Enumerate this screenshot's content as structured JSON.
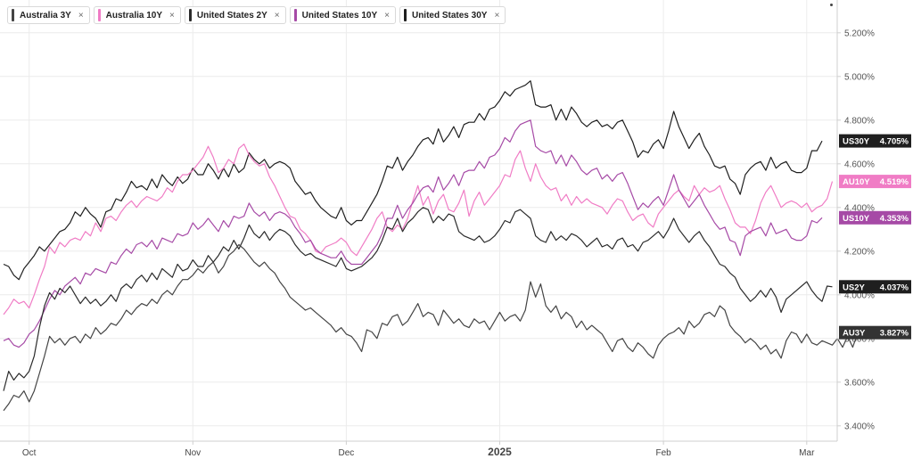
{
  "legend": [
    {
      "label": "Australia 3Y",
      "color": "#444444"
    },
    {
      "label": "Australia 10Y",
      "color": "#f07cc5"
    },
    {
      "label": "United States 2Y",
      "color": "#2b2b2b"
    },
    {
      "label": "United States 10Y",
      "color": "#a64aa6"
    },
    {
      "label": "United States 30Y",
      "color": "#1f1f1f"
    }
  ],
  "close_symbol": "×",
  "chart_data": {
    "type": "line",
    "xlabel": "",
    "ylabel": "",
    "x_ticks": [
      {
        "label": "Oct",
        "index": 5
      },
      {
        "label": "Nov",
        "index": 37
      },
      {
        "label": "Dec",
        "index": 67
      },
      {
        "label": "2025",
        "index": 97
      },
      {
        "label": "Feb",
        "index": 129
      },
      {
        "label": "Mar",
        "index": 157
      }
    ],
    "y_ticks": [
      "5.200%",
      "5.000%",
      "4.800%",
      "4.600%",
      "4.400%",
      "4.200%",
      "4.000%",
      "3.800%",
      "3.600%",
      "3.400%"
    ],
    "y_tick_values": [
      5.2,
      5.0,
      4.8,
      4.6,
      4.4,
      4.2,
      4.0,
      3.8,
      3.6,
      3.4
    ],
    "ylim": [
      3.33,
      5.35
    ],
    "grid": true,
    "series": [
      {
        "name": "US30Y",
        "tag": "US30Y",
        "last": "4.705%",
        "color": "#1f1f1f",
        "tag_color": "#1f1f1f",
        "values": [
          4.14,
          4.13,
          4.09,
          4.07,
          4.12,
          4.15,
          4.18,
          4.22,
          4.2,
          4.23,
          4.26,
          4.29,
          4.3,
          4.33,
          4.38,
          4.36,
          4.4,
          4.37,
          4.35,
          4.31,
          4.38,
          4.39,
          4.44,
          4.43,
          4.47,
          4.52,
          4.49,
          4.5,
          4.48,
          4.53,
          4.49,
          4.55,
          4.52,
          4.5,
          4.54,
          4.51,
          4.53,
          4.58,
          4.55,
          4.55,
          4.6,
          4.57,
          4.53,
          4.58,
          4.54,
          4.6,
          4.56,
          4.58,
          4.65,
          4.62,
          4.6,
          4.62,
          4.58,
          4.6,
          4.61,
          4.6,
          4.58,
          4.52,
          4.49,
          4.46,
          4.47,
          4.43,
          4.4,
          4.38,
          4.36,
          4.35,
          4.4,
          4.34,
          4.32,
          4.34,
          4.34,
          4.38,
          4.42,
          4.46,
          4.52,
          4.59,
          4.58,
          4.63,
          4.57,
          4.61,
          4.64,
          4.68,
          4.71,
          4.72,
          4.69,
          4.76,
          4.7,
          4.73,
          4.77,
          4.72,
          4.78,
          4.79,
          4.79,
          4.83,
          4.8,
          4.85,
          4.86,
          4.89,
          4.93,
          4.91,
          4.94,
          4.95,
          4.96,
          4.98,
          4.87,
          4.86,
          4.86,
          4.87,
          4.8,
          4.85,
          4.8,
          4.86,
          4.83,
          4.79,
          4.77,
          4.79,
          4.8,
          4.77,
          4.78,
          4.76,
          4.79,
          4.8,
          4.75,
          4.7,
          4.63,
          4.66,
          4.65,
          4.69,
          4.71,
          4.67,
          4.75,
          4.84,
          4.77,
          4.72,
          4.67,
          4.71,
          4.74,
          4.68,
          4.64,
          4.59,
          4.58,
          4.59,
          4.53,
          4.51,
          4.46,
          4.55,
          4.58,
          4.6,
          4.61,
          4.57,
          4.63,
          4.58,
          4.6,
          4.61,
          4.57,
          4.56,
          4.56,
          4.58,
          4.66,
          4.66,
          4.705
        ]
      },
      {
        "name": "AU10Y",
        "tag": "AU10Y",
        "last": "4.519%",
        "color": "#f07cc5",
        "tag_color": "#f07cc5",
        "values": [
          3.91,
          3.94,
          3.98,
          3.96,
          3.97,
          3.94,
          4.0,
          4.07,
          4.13,
          4.22,
          4.19,
          4.24,
          4.22,
          4.25,
          4.26,
          4.25,
          4.29,
          4.27,
          4.33,
          4.29,
          4.35,
          4.36,
          4.34,
          4.38,
          4.41,
          4.43,
          4.4,
          4.43,
          4.45,
          4.44,
          4.43,
          4.45,
          4.49,
          4.47,
          4.52,
          4.55,
          4.55,
          4.57,
          4.6,
          4.63,
          4.68,
          4.63,
          4.56,
          4.58,
          4.62,
          4.6,
          4.67,
          4.69,
          4.64,
          4.61,
          4.59,
          4.6,
          4.54,
          4.5,
          4.45,
          4.4,
          4.36,
          4.35,
          4.3,
          4.28,
          4.25,
          4.2,
          4.19,
          4.22,
          4.23,
          4.24,
          4.26,
          4.24,
          4.2,
          4.18,
          4.22,
          4.26,
          4.3,
          4.35,
          4.38,
          4.31,
          4.29,
          4.32,
          4.3,
          4.35,
          4.43,
          4.5,
          4.41,
          4.45,
          4.37,
          4.43,
          4.46,
          4.39,
          4.38,
          4.42,
          4.48,
          4.36,
          4.43,
          4.47,
          4.41,
          4.44,
          4.47,
          4.5,
          4.55,
          4.54,
          4.62,
          4.66,
          4.58,
          4.52,
          4.6,
          4.54,
          4.5,
          4.48,
          4.49,
          4.43,
          4.46,
          4.41,
          4.45,
          4.42,
          4.44,
          4.42,
          4.41,
          4.4,
          4.37,
          4.41,
          4.44,
          4.43,
          4.38,
          4.34,
          4.36,
          4.37,
          4.33,
          4.31,
          4.37,
          4.4,
          4.43,
          4.46,
          4.48,
          4.45,
          4.43,
          4.5,
          4.46,
          4.49,
          4.47,
          4.48,
          4.5,
          4.44,
          4.39,
          4.33,
          4.31,
          4.31,
          4.28,
          4.34,
          4.42,
          4.47,
          4.5,
          4.45,
          4.4,
          4.42,
          4.43,
          4.42,
          4.4,
          4.42,
          4.38,
          4.4,
          4.41,
          4.44,
          4.519
        ]
      },
      {
        "name": "US10Y",
        "tag": "US10Y",
        "last": "4.353%",
        "color": "#a64aa6",
        "tag_color": "#a64aa6",
        "values": [
          3.79,
          3.8,
          3.77,
          3.76,
          3.78,
          3.82,
          3.84,
          3.88,
          3.93,
          3.98,
          4.02,
          4.0,
          4.04,
          4.06,
          4.08,
          4.05,
          4.1,
          4.09,
          4.12,
          4.11,
          4.1,
          4.15,
          4.14,
          4.18,
          4.21,
          4.19,
          4.23,
          4.24,
          4.22,
          4.25,
          4.21,
          4.26,
          4.25,
          4.24,
          4.28,
          4.27,
          4.28,
          4.33,
          4.3,
          4.32,
          4.35,
          4.32,
          4.29,
          4.34,
          4.31,
          4.36,
          4.35,
          4.36,
          4.42,
          4.38,
          4.36,
          4.38,
          4.34,
          4.37,
          4.38,
          4.37,
          4.35,
          4.31,
          4.28,
          4.24,
          4.25,
          4.21,
          4.19,
          4.18,
          4.17,
          4.17,
          4.2,
          4.16,
          4.14,
          4.14,
          4.14,
          4.17,
          4.2,
          4.23,
          4.28,
          4.35,
          4.35,
          4.41,
          4.35,
          4.39,
          4.42,
          4.46,
          4.49,
          4.5,
          4.47,
          4.54,
          4.48,
          4.51,
          4.55,
          4.5,
          4.56,
          4.57,
          4.57,
          4.61,
          4.58,
          4.63,
          4.64,
          4.67,
          4.72,
          4.7,
          4.75,
          4.78,
          4.79,
          4.8,
          4.68,
          4.66,
          4.65,
          4.66,
          4.6,
          4.64,
          4.59,
          4.64,
          4.61,
          4.57,
          4.55,
          4.57,
          4.58,
          4.53,
          4.55,
          4.52,
          4.55,
          4.56,
          4.51,
          4.45,
          4.39,
          4.42,
          4.4,
          4.43,
          4.45,
          4.41,
          4.48,
          4.55,
          4.48,
          4.44,
          4.4,
          4.43,
          4.46,
          4.41,
          4.37,
          4.33,
          4.3,
          4.31,
          4.25,
          4.24,
          4.18,
          4.27,
          4.29,
          4.3,
          4.31,
          4.27,
          4.33,
          4.28,
          4.29,
          4.3,
          4.26,
          4.25,
          4.25,
          4.27,
          4.34,
          4.33,
          4.353
        ]
      },
      {
        "name": "US2Y",
        "tag": "US2Y",
        "last": "4.037%",
        "color": "#2b2b2b",
        "tag_color": "#1f1f1f",
        "values": [
          3.56,
          3.65,
          3.61,
          3.64,
          3.62,
          3.65,
          3.72,
          3.85,
          3.95,
          4.01,
          3.98,
          4.03,
          4.01,
          4.04,
          4.0,
          3.96,
          3.99,
          3.96,
          3.98,
          3.95,
          3.97,
          4.0,
          3.97,
          4.03,
          4.05,
          4.03,
          4.07,
          4.09,
          4.06,
          4.1,
          4.07,
          4.12,
          4.1,
          4.08,
          4.14,
          4.11,
          4.12,
          4.16,
          4.13,
          4.13,
          4.18,
          4.15,
          4.18,
          4.22,
          4.2,
          4.25,
          4.21,
          4.26,
          4.32,
          4.28,
          4.26,
          4.29,
          4.25,
          4.28,
          4.3,
          4.29,
          4.27,
          4.23,
          4.2,
          4.18,
          4.19,
          4.17,
          4.16,
          4.15,
          4.14,
          4.13,
          4.17,
          4.12,
          4.11,
          4.12,
          4.13,
          4.15,
          4.17,
          4.2,
          4.25,
          4.31,
          4.3,
          4.35,
          4.29,
          4.33,
          4.35,
          4.38,
          4.4,
          4.39,
          4.33,
          4.36,
          4.34,
          4.37,
          4.36,
          4.29,
          4.27,
          4.26,
          4.25,
          4.27,
          4.24,
          4.25,
          4.27,
          4.3,
          4.34,
          4.33,
          4.38,
          4.39,
          4.37,
          4.35,
          4.27,
          4.25,
          4.24,
          4.29,
          4.25,
          4.27,
          4.25,
          4.28,
          4.27,
          4.25,
          4.22,
          4.24,
          4.26,
          4.22,
          4.23,
          4.21,
          4.25,
          4.26,
          4.22,
          4.23,
          4.2,
          4.24,
          4.25,
          4.27,
          4.29,
          4.26,
          4.3,
          4.35,
          4.3,
          4.27,
          4.24,
          4.27,
          4.29,
          4.25,
          4.22,
          4.18,
          4.14,
          4.13,
          4.1,
          4.08,
          4.03,
          4.0,
          3.97,
          3.99,
          4.02,
          3.99,
          4.03,
          3.99,
          3.92,
          3.98,
          4.0,
          4.02,
          4.04,
          4.06,
          4.02,
          3.99,
          3.97,
          4.04,
          4.037
        ]
      },
      {
        "name": "AU3Y",
        "tag": "AU3Y",
        "last": "3.827%",
        "color": "#444444",
        "tag_color": "#333333",
        "values": [
          3.47,
          3.5,
          3.54,
          3.53,
          3.56,
          3.51,
          3.56,
          3.64,
          3.72,
          3.81,
          3.78,
          3.8,
          3.77,
          3.8,
          3.81,
          3.78,
          3.82,
          3.8,
          3.85,
          3.82,
          3.84,
          3.87,
          3.86,
          3.89,
          3.93,
          3.91,
          3.94,
          3.96,
          3.95,
          3.98,
          3.96,
          4.0,
          4.02,
          4.0,
          4.04,
          4.07,
          4.07,
          4.09,
          4.12,
          4.1,
          4.13,
          4.15,
          4.1,
          4.13,
          4.18,
          4.2,
          4.23,
          4.21,
          4.18,
          4.15,
          4.13,
          4.15,
          4.12,
          4.1,
          4.06,
          4.03,
          3.99,
          3.97,
          3.95,
          3.93,
          3.94,
          3.92,
          3.9,
          3.88,
          3.86,
          3.83,
          3.85,
          3.82,
          3.81,
          3.78,
          3.74,
          3.84,
          3.83,
          3.8,
          3.87,
          3.86,
          3.9,
          3.91,
          3.86,
          3.88,
          3.92,
          3.96,
          3.9,
          3.92,
          3.91,
          3.86,
          3.93,
          3.9,
          3.87,
          3.89,
          3.86,
          3.85,
          3.89,
          3.87,
          3.88,
          3.84,
          3.88,
          3.92,
          3.88,
          3.9,
          3.91,
          3.88,
          3.93,
          4.06,
          3.99,
          4.05,
          3.95,
          3.92,
          3.95,
          3.89,
          3.92,
          3.9,
          3.85,
          3.88,
          3.84,
          3.86,
          3.84,
          3.82,
          3.78,
          3.74,
          3.79,
          3.8,
          3.76,
          3.74,
          3.78,
          3.76,
          3.73,
          3.71,
          3.77,
          3.8,
          3.82,
          3.83,
          3.85,
          3.82,
          3.88,
          3.85,
          3.87,
          3.91,
          3.92,
          3.9,
          3.95,
          3.93,
          3.86,
          3.83,
          3.81,
          3.78,
          3.8,
          3.78,
          3.75,
          3.77,
          3.73,
          3.75,
          3.71,
          3.79,
          3.83,
          3.82,
          3.78,
          3.82,
          3.78,
          3.77,
          3.79,
          3.78,
          3.77,
          3.8,
          3.76,
          3.81,
          3.76,
          3.827
        ]
      }
    ]
  }
}
